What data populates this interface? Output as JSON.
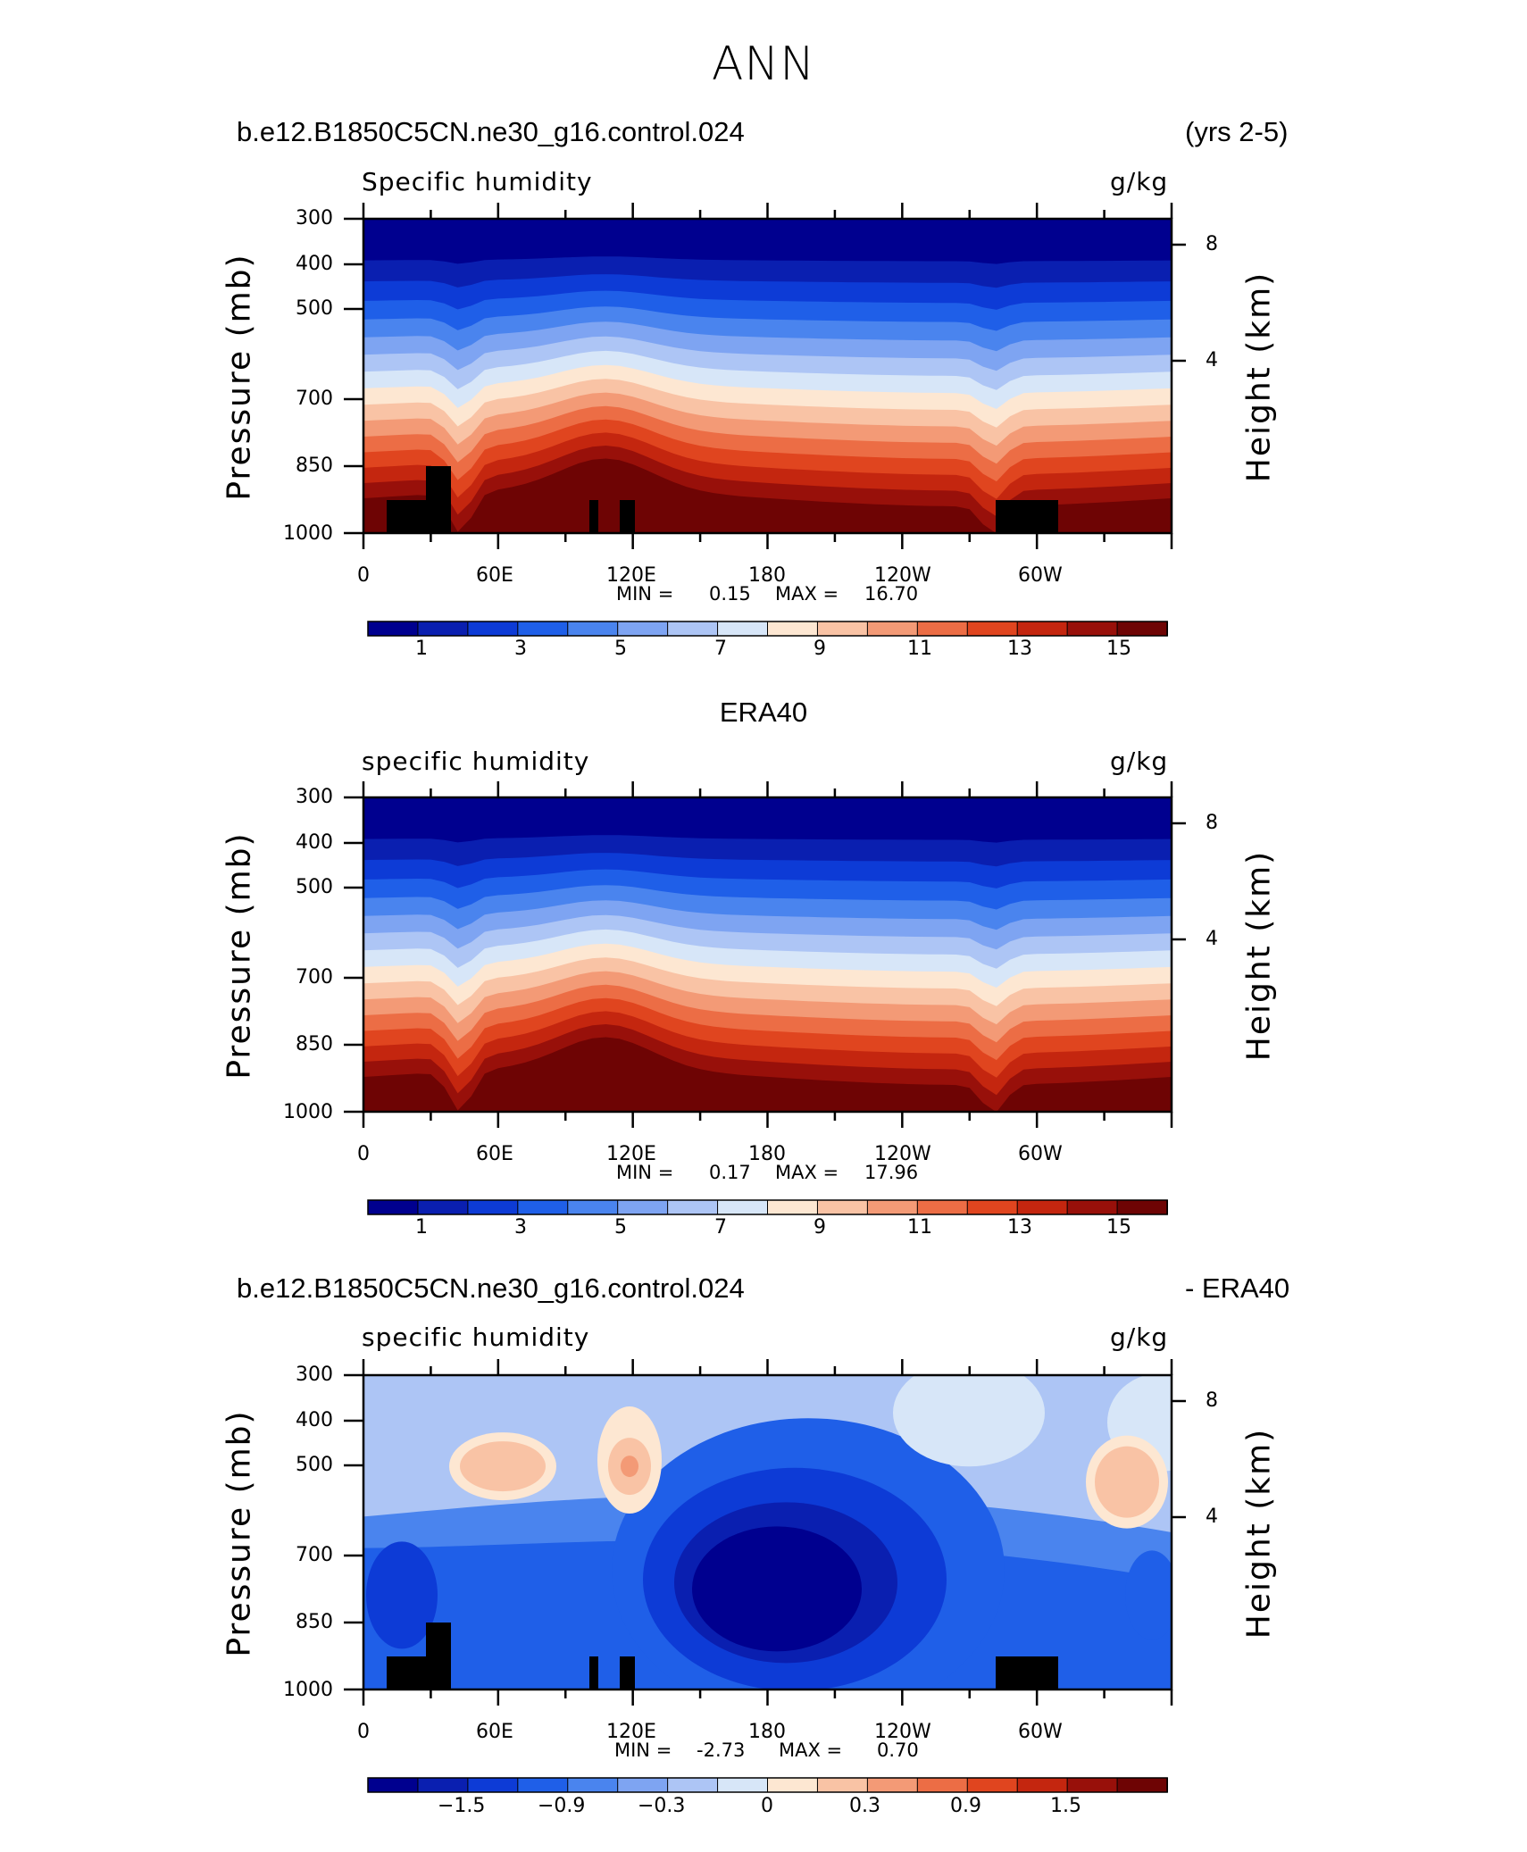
{
  "main_title": "ANN",
  "chart_data": [
    {
      "type": "heatmap",
      "case_title": "b.e12.B1850C5CN.ne30_g16.control.024",
      "case_suffix": "(yrs 2-5)",
      "label_left": "Specific humidity",
      "label_right": "g/kg",
      "ylabel": "Pressure (mb)",
      "ylabel_right": "Height (km)",
      "x_ticks": [
        "0",
        "60E",
        "120E",
        "180",
        "120W",
        "60W"
      ],
      "y_ticks": [
        "300",
        "400",
        "500",
        "700",
        "850",
        "1000"
      ],
      "y_ticks_right": [
        "8",
        "4"
      ],
      "min_label": "MIN =",
      "min_value": "0.15",
      "max_label": "MAX =",
      "max_value": "16.70",
      "colorbar_labels": [
        "1",
        "3",
        "5",
        "7",
        "9",
        "11",
        "13",
        "15"
      ],
      "masked_topography": true
    },
    {
      "type": "heatmap",
      "case_title": "ERA40",
      "case_suffix": "",
      "label_left": "specific humidity",
      "label_right": "g/kg",
      "ylabel": "Pressure (mb)",
      "ylabel_right": "Height (km)",
      "x_ticks": [
        "0",
        "60E",
        "120E",
        "180",
        "120W",
        "60W"
      ],
      "y_ticks": [
        "300",
        "400",
        "500",
        "700",
        "850",
        "1000"
      ],
      "y_ticks_right": [
        "8",
        "4"
      ],
      "min_label": "MIN =",
      "min_value": "0.17",
      "max_label": "MAX =",
      "max_value": "17.96",
      "colorbar_labels": [
        "1",
        "3",
        "5",
        "7",
        "9",
        "11",
        "13",
        "15"
      ],
      "masked_topography": false
    },
    {
      "type": "heatmap",
      "case_title": "b.e12.B1850C5CN.ne30_g16.control.024",
      "case_suffix": "- ERA40",
      "label_left": "specific humidity",
      "label_right": "g/kg",
      "ylabel": "Pressure (mb)",
      "ylabel_right": "Height (km)",
      "x_ticks": [
        "0",
        "60E",
        "120E",
        "180",
        "120W",
        "60W"
      ],
      "y_ticks": [
        "300",
        "400",
        "500",
        "700",
        "850",
        "1000"
      ],
      "y_ticks_right": [
        "8",
        "4"
      ],
      "min_label": "MIN =",
      "min_value": "-2.73",
      "max_label": "MAX =",
      "max_value": "0.70",
      "colorbar_labels": [
        "−1.5",
        "−0.9",
        "−0.3",
        "0",
        "0.3",
        "0.9",
        "1.5"
      ],
      "masked_topography": true
    }
  ],
  "colors": {
    "palette": [
      "#00008f",
      "#0a1fb0",
      "#0d3bd6",
      "#1f5fe8",
      "#4a84ee",
      "#7ea4f2",
      "#adc5f5",
      "#d7e6f8",
      "#fde7d2",
      "#f9c3a5",
      "#f39a76",
      "#ec6d45",
      "#e0451f",
      "#c4260f",
      "#98100a",
      "#6e0404"
    ]
  }
}
